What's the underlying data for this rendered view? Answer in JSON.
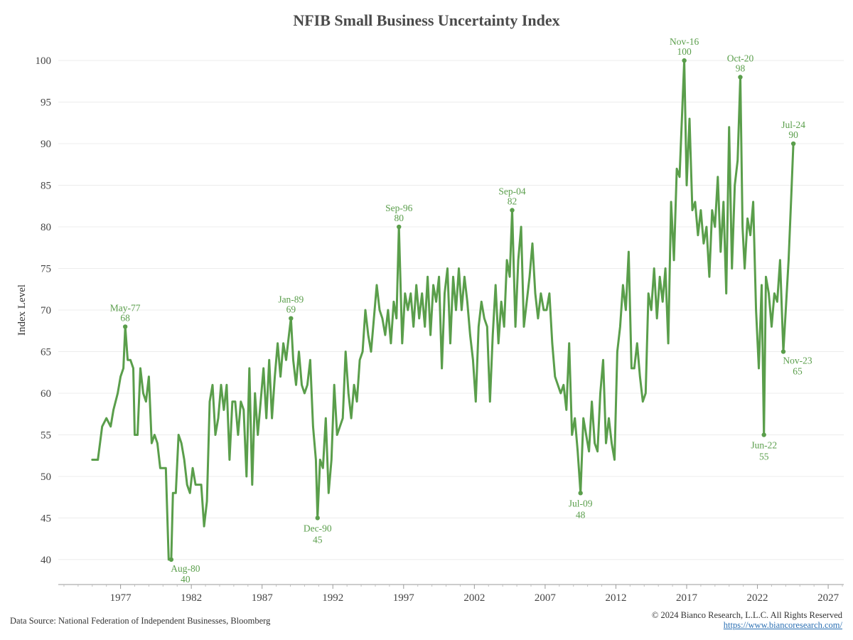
{
  "chart_data": {
    "type": "line",
    "title": "NFIB Small Business Uncertainty Index",
    "ylabel": "Index Level",
    "xlabel": "",
    "ylim": [
      37,
      103
    ],
    "xlim": [
      1972.6,
      2028.1
    ],
    "yticks": [
      40,
      45,
      50,
      55,
      60,
      65,
      70,
      75,
      80,
      85,
      90,
      95,
      100
    ],
    "xticks": [
      1977,
      1982,
      1987,
      1992,
      1997,
      2002,
      2007,
      2012,
      2017,
      2022,
      2027
    ],
    "grid": "horizontal",
    "line_color": "#5a9e4b",
    "annotation_color": "#5a9e4b",
    "series": [
      {
        "points": [
          [
            1975.0,
            52
          ],
          [
            1975.4,
            52
          ],
          [
            1975.7,
            56
          ],
          [
            1976.0,
            57
          ],
          [
            1976.3,
            56
          ],
          [
            1976.5,
            58
          ],
          [
            1976.8,
            60
          ],
          [
            1977.0,
            62
          ],
          [
            1977.2,
            63
          ],
          [
            1977.33,
            68
          ],
          [
            1977.5,
            64
          ],
          [
            1977.7,
            64
          ],
          [
            1977.9,
            63
          ],
          [
            1978.0,
            55
          ],
          [
            1978.2,
            55
          ],
          [
            1978.4,
            63
          ],
          [
            1978.6,
            60
          ],
          [
            1978.8,
            59
          ],
          [
            1979.0,
            62
          ],
          [
            1979.2,
            54
          ],
          [
            1979.4,
            55
          ],
          [
            1979.6,
            54
          ],
          [
            1979.8,
            51
          ],
          [
            1980.0,
            51
          ],
          [
            1980.2,
            51
          ],
          [
            1980.4,
            40
          ],
          [
            1980.58,
            40
          ],
          [
            1980.7,
            48
          ],
          [
            1980.9,
            48
          ],
          [
            1981.1,
            55
          ],
          [
            1981.3,
            54
          ],
          [
            1981.5,
            52
          ],
          [
            1981.7,
            49
          ],
          [
            1981.9,
            48
          ],
          [
            1982.1,
            51
          ],
          [
            1982.3,
            49
          ],
          [
            1982.5,
            49
          ],
          [
            1982.7,
            49
          ],
          [
            1982.9,
            44
          ],
          [
            1983.1,
            47
          ],
          [
            1983.3,
            59
          ],
          [
            1983.5,
            61
          ],
          [
            1983.7,
            55
          ],
          [
            1983.9,
            57
          ],
          [
            1984.1,
            61
          ],
          [
            1984.3,
            58
          ],
          [
            1984.5,
            61
          ],
          [
            1984.7,
            52
          ],
          [
            1984.9,
            59
          ],
          [
            1985.1,
            59
          ],
          [
            1985.3,
            55
          ],
          [
            1985.5,
            59
          ],
          [
            1985.7,
            58
          ],
          [
            1985.9,
            50
          ],
          [
            1986.1,
            63
          ],
          [
            1986.3,
            49
          ],
          [
            1986.5,
            60
          ],
          [
            1986.7,
            55
          ],
          [
            1986.9,
            59
          ],
          [
            1987.1,
            63
          ],
          [
            1987.3,
            57
          ],
          [
            1987.5,
            64
          ],
          [
            1987.7,
            57
          ],
          [
            1987.9,
            62
          ],
          [
            1988.1,
            66
          ],
          [
            1988.3,
            62
          ],
          [
            1988.5,
            66
          ],
          [
            1988.7,
            64
          ],
          [
            1988.9,
            67
          ],
          [
            1989.04,
            69
          ],
          [
            1989.2,
            64
          ],
          [
            1989.4,
            61
          ],
          [
            1989.6,
            65
          ],
          [
            1989.8,
            61
          ],
          [
            1990.0,
            60
          ],
          [
            1990.2,
            61
          ],
          [
            1990.4,
            64
          ],
          [
            1990.6,
            56
          ],
          [
            1990.8,
            52
          ],
          [
            1990.92,
            45
          ],
          [
            1991.1,
            52
          ],
          [
            1991.3,
            51
          ],
          [
            1991.5,
            57
          ],
          [
            1991.7,
            48
          ],
          [
            1991.9,
            52
          ],
          [
            1992.1,
            61
          ],
          [
            1992.3,
            55
          ],
          [
            1992.5,
            56
          ],
          [
            1992.7,
            57
          ],
          [
            1992.9,
            65
          ],
          [
            1993.1,
            60
          ],
          [
            1993.3,
            57
          ],
          [
            1993.5,
            61
          ],
          [
            1993.7,
            59
          ],
          [
            1993.9,
            64
          ],
          [
            1994.1,
            65
          ],
          [
            1994.3,
            70
          ],
          [
            1994.5,
            67
          ],
          [
            1994.7,
            65
          ],
          [
            1994.9,
            69
          ],
          [
            1995.1,
            73
          ],
          [
            1995.3,
            70
          ],
          [
            1995.5,
            69
          ],
          [
            1995.7,
            67
          ],
          [
            1995.9,
            70
          ],
          [
            1996.1,
            66
          ],
          [
            1996.3,
            71
          ],
          [
            1996.5,
            69
          ],
          [
            1996.67,
            80
          ],
          [
            1996.9,
            66
          ],
          [
            1997.1,
            72
          ],
          [
            1997.3,
            70
          ],
          [
            1997.5,
            72
          ],
          [
            1997.7,
            68
          ],
          [
            1997.9,
            73
          ],
          [
            1998.1,
            69
          ],
          [
            1998.3,
            72
          ],
          [
            1998.5,
            68
          ],
          [
            1998.7,
            74
          ],
          [
            1998.9,
            67
          ],
          [
            1999.1,
            73
          ],
          [
            1999.3,
            71
          ],
          [
            1999.5,
            74
          ],
          [
            1999.7,
            63
          ],
          [
            1999.9,
            72
          ],
          [
            2000.1,
            75
          ],
          [
            2000.3,
            66
          ],
          [
            2000.5,
            74
          ],
          [
            2000.7,
            70
          ],
          [
            2000.9,
            75
          ],
          [
            2001.1,
            70
          ],
          [
            2001.3,
            74
          ],
          [
            2001.5,
            71
          ],
          [
            2001.7,
            67
          ],
          [
            2001.9,
            64
          ],
          [
            2002.1,
            59
          ],
          [
            2002.3,
            68
          ],
          [
            2002.5,
            71
          ],
          [
            2002.7,
            69
          ],
          [
            2002.9,
            68
          ],
          [
            2003.1,
            59
          ],
          [
            2003.3,
            67
          ],
          [
            2003.5,
            73
          ],
          [
            2003.7,
            66
          ],
          [
            2003.9,
            71
          ],
          [
            2004.1,
            68
          ],
          [
            2004.3,
            76
          ],
          [
            2004.5,
            74
          ],
          [
            2004.67,
            82
          ],
          [
            2004.9,
            68
          ],
          [
            2005.1,
            76
          ],
          [
            2005.3,
            80
          ],
          [
            2005.5,
            68
          ],
          [
            2005.7,
            71
          ],
          [
            2005.9,
            74
          ],
          [
            2006.1,
            78
          ],
          [
            2006.3,
            72
          ],
          [
            2006.5,
            69
          ],
          [
            2006.7,
            72
          ],
          [
            2006.9,
            70
          ],
          [
            2007.1,
            70
          ],
          [
            2007.3,
            72
          ],
          [
            2007.5,
            66
          ],
          [
            2007.7,
            62
          ],
          [
            2007.9,
            61
          ],
          [
            2008.1,
            60
          ],
          [
            2008.3,
            61
          ],
          [
            2008.5,
            58
          ],
          [
            2008.7,
            66
          ],
          [
            2008.9,
            55
          ],
          [
            2009.1,
            57
          ],
          [
            2009.3,
            53
          ],
          [
            2009.5,
            48
          ],
          [
            2009.7,
            57
          ],
          [
            2009.9,
            55
          ],
          [
            2010.1,
            53
          ],
          [
            2010.3,
            59
          ],
          [
            2010.5,
            54
          ],
          [
            2010.7,
            53
          ],
          [
            2010.9,
            60
          ],
          [
            2011.1,
            64
          ],
          [
            2011.3,
            54
          ],
          [
            2011.5,
            57
          ],
          [
            2011.7,
            54
          ],
          [
            2011.9,
            52
          ],
          [
            2012.1,
            65
          ],
          [
            2012.3,
            68
          ],
          [
            2012.5,
            73
          ],
          [
            2012.7,
            70
          ],
          [
            2012.9,
            77
          ],
          [
            2013.1,
            63
          ],
          [
            2013.3,
            63
          ],
          [
            2013.5,
            66
          ],
          [
            2013.7,
            62
          ],
          [
            2013.9,
            59
          ],
          [
            2014.1,
            60
          ],
          [
            2014.3,
            72
          ],
          [
            2014.5,
            70
          ],
          [
            2014.7,
            75
          ],
          [
            2014.9,
            69
          ],
          [
            2015.1,
            74
          ],
          [
            2015.3,
            71
          ],
          [
            2015.5,
            75
          ],
          [
            2015.7,
            66
          ],
          [
            2015.9,
            83
          ],
          [
            2016.1,
            76
          ],
          [
            2016.3,
            87
          ],
          [
            2016.5,
            86
          ],
          [
            2016.83,
            100
          ],
          [
            2017.0,
            85
          ],
          [
            2017.2,
            93
          ],
          [
            2017.4,
            82
          ],
          [
            2017.6,
            83
          ],
          [
            2017.8,
            79
          ],
          [
            2018.0,
            82
          ],
          [
            2018.2,
            78
          ],
          [
            2018.4,
            80
          ],
          [
            2018.6,
            74
          ],
          [
            2018.8,
            82
          ],
          [
            2019.0,
            80
          ],
          [
            2019.2,
            86
          ],
          [
            2019.4,
            77
          ],
          [
            2019.6,
            83
          ],
          [
            2019.8,
            72
          ],
          [
            2020.0,
            92
          ],
          [
            2020.2,
            75
          ],
          [
            2020.4,
            85
          ],
          [
            2020.6,
            88
          ],
          [
            2020.79,
            98
          ],
          [
            2020.95,
            80
          ],
          [
            2021.1,
            75
          ],
          [
            2021.3,
            81
          ],
          [
            2021.5,
            79
          ],
          [
            2021.7,
            83
          ],
          [
            2021.9,
            70
          ],
          [
            2022.1,
            63
          ],
          [
            2022.3,
            73
          ],
          [
            2022.46,
            55
          ],
          [
            2022.6,
            74
          ],
          [
            2022.8,
            72
          ],
          [
            2023.0,
            68
          ],
          [
            2023.2,
            72
          ],
          [
            2023.4,
            71
          ],
          [
            2023.6,
            76
          ],
          [
            2023.83,
            65
          ],
          [
            2024.0,
            70
          ],
          [
            2024.2,
            76
          ],
          [
            2024.4,
            84
          ],
          [
            2024.54,
            90
          ]
        ]
      }
    ],
    "annotations": [
      {
        "label": "May-77",
        "value": "68",
        "x": 1977.33,
        "y": 68,
        "pos": "above"
      },
      {
        "label": "Aug-80",
        "value": "40",
        "x": 1980.58,
        "y": 40,
        "pos": "below-right"
      },
      {
        "label": "Jan-89",
        "value": "69",
        "x": 1989.04,
        "y": 69,
        "pos": "above"
      },
      {
        "label": "Dec-90",
        "value": "45",
        "x": 1990.92,
        "y": 45,
        "pos": "below"
      },
      {
        "label": "Sep-96",
        "value": "80",
        "x": 1996.67,
        "y": 80,
        "pos": "above"
      },
      {
        "label": "Sep-04",
        "value": "82",
        "x": 2004.67,
        "y": 82,
        "pos": "above"
      },
      {
        "label": "Jul-09",
        "value": "48",
        "x": 2009.5,
        "y": 48,
        "pos": "below"
      },
      {
        "label": "Nov-16",
        "value": "100",
        "x": 2016.83,
        "y": 100,
        "pos": "above"
      },
      {
        "label": "Oct-20",
        "value": "98",
        "x": 2020.79,
        "y": 98,
        "pos": "above"
      },
      {
        "label": "Jun-22",
        "value": "55",
        "x": 2022.46,
        "y": 55,
        "pos": "below"
      },
      {
        "label": "Nov-23",
        "value": "65",
        "x": 2023.83,
        "y": 65,
        "pos": "below-right"
      },
      {
        "label": "Jul-24",
        "value": "90",
        "x": 2024.54,
        "y": 90,
        "pos": "above"
      }
    ]
  },
  "footer": {
    "source": "Data Source: National Federation of Independent Businesses, Bloomberg",
    "copyright": "© 2024 Bianco Research, L.L.C. All Rights Reserved",
    "url": "https://www.biancoresearch.com/"
  }
}
